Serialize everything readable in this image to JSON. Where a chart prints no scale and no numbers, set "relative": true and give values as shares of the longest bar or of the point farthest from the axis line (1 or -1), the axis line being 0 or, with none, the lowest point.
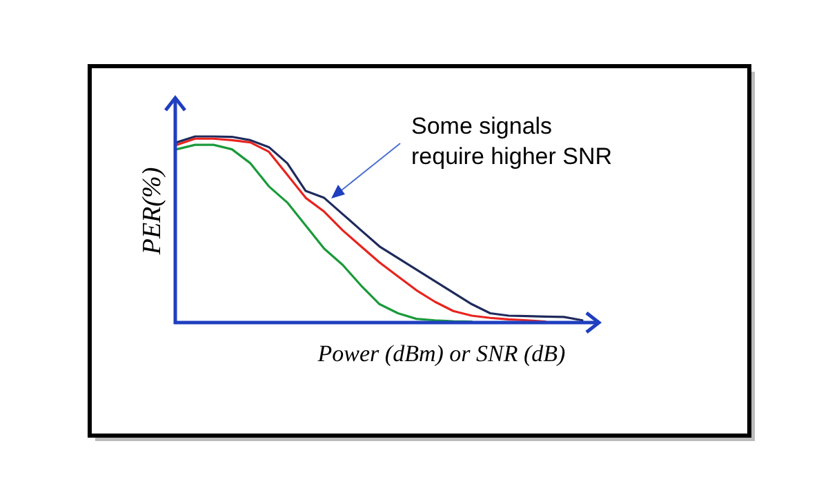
{
  "chart_data": {
    "type": "line",
    "relative": true,
    "xlabel": "Power (dBm) or SNR (dB)",
    "ylabel": "PER(%)",
    "annotations": [
      "Some signals require higher SNR"
    ],
    "marker": "none",
    "line_style": "solid",
    "categories": [
      null,
      null,
      null,
      null,
      null,
      null,
      null,
      null,
      null,
      null,
      null,
      null,
      null,
      null,
      null,
      null,
      null,
      null,
      null,
      null,
      null,
      null,
      null
    ],
    "series": [
      {
        "color": "#1f2a5c",
        "values": [
          0.968,
          1,
          1,
          0.998,
          0.98,
          0.943,
          0.856,
          0.707,
          0.67,
          0.583,
          0.496,
          0.409,
          0.347,
          0.285,
          0.223,
          0.161,
          0.099,
          0.05,
          0.037,
          0.035,
          0.032,
          0.03,
          0.012
        ]
      },
      {
        "color": "#e8231e",
        "values": [
          0.955,
          0.988,
          0.988,
          0.98,
          0.968,
          0.918,
          0.794,
          0.67,
          0.596,
          0.496,
          0.409,
          0.323,
          0.248,
          0.174,
          0.112,
          0.062,
          0.037,
          0.025,
          0.017,
          0.012,
          0.005,
          null,
          null
        ]
      },
      {
        "color": "#1a9a3a",
        "values": [
          0.931,
          0.955,
          0.955,
          0.931,
          0.856,
          0.732,
          0.645,
          0.521,
          0.397,
          0.31,
          0.199,
          0.099,
          0.05,
          0.02,
          0.012,
          0.007,
          0.005,
          null,
          null,
          null,
          null,
          null,
          null
        ]
      }
    ]
  }
}
